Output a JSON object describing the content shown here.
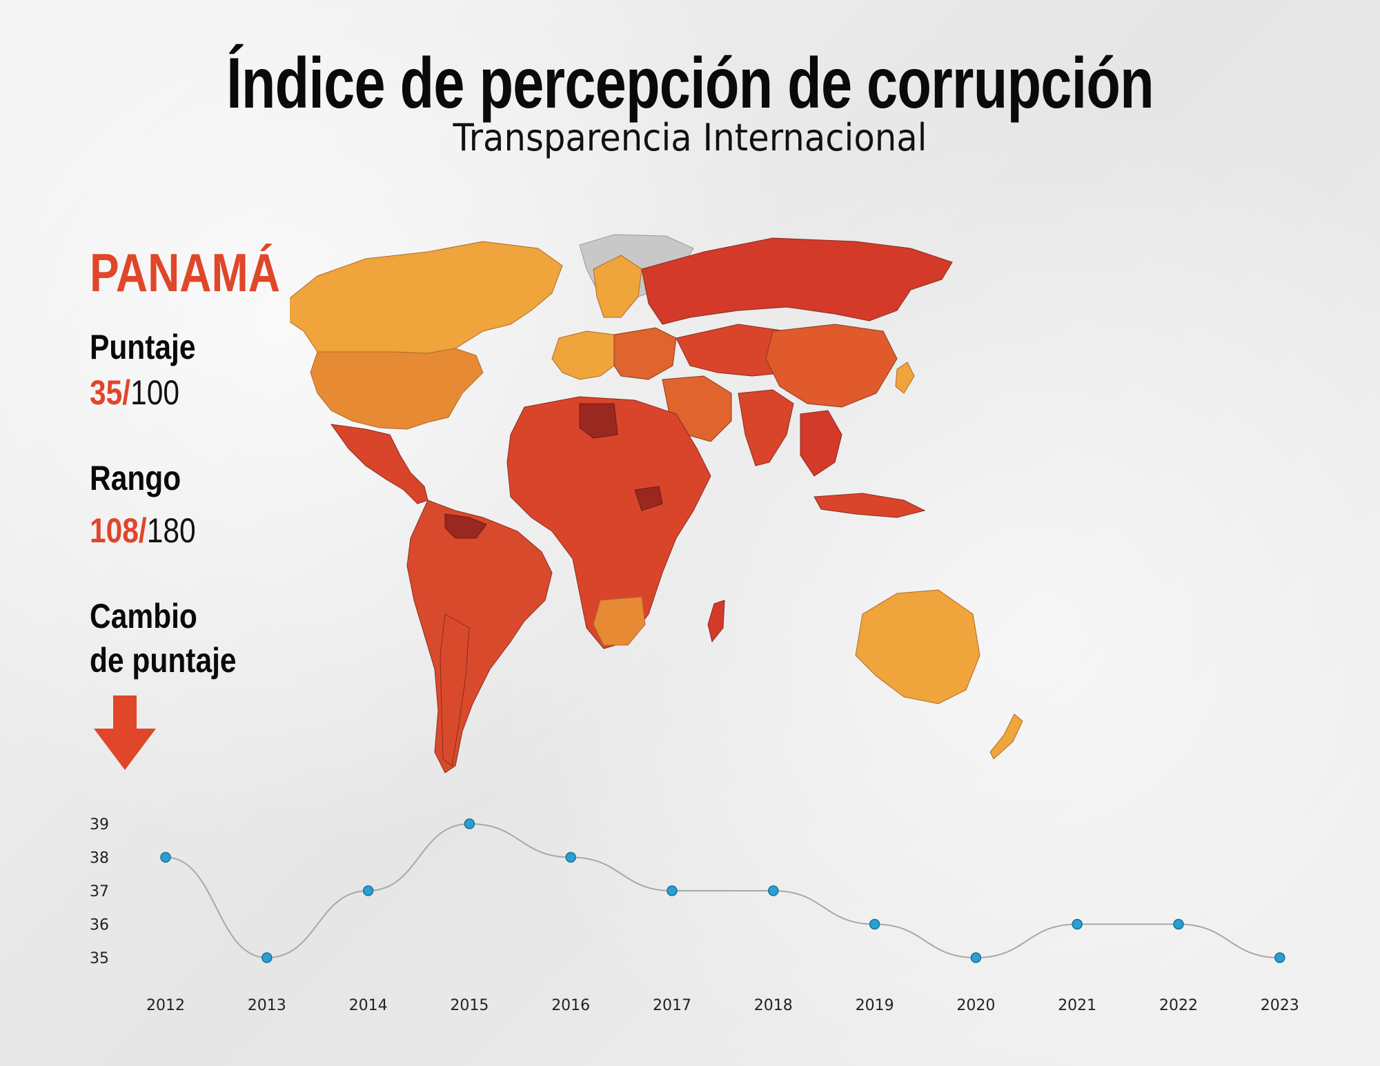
{
  "header": {
    "title": "Índice de percepción de corrupción",
    "subtitle": "Transparencia Internacional"
  },
  "panel": {
    "country": "PANAMÁ",
    "score_label": "Puntaje",
    "score_value": "35/",
    "score_total": "100",
    "rank_label": "Rango",
    "rank_value": "108/",
    "rank_total": "180",
    "change_label_line1": "Cambio",
    "change_label_line2": "de puntaje",
    "change_icon": "arrow-down-icon"
  },
  "colors": {
    "accent": "#e0462a",
    "line": "#a8a8a8",
    "marker": "#2a9fd4",
    "marker_stroke": "#1a6f9a"
  },
  "chart_data": {
    "type": "line",
    "x": [
      "2012",
      "2013",
      "2014",
      "2015",
      "2016",
      "2017",
      "2018",
      "2019",
      "2020",
      "2021",
      "2022",
      "2023"
    ],
    "values": [
      38,
      35,
      37,
      39,
      38,
      37,
      37,
      36,
      35,
      36,
      36,
      35
    ],
    "yticks": [
      39,
      38,
      37,
      36,
      35
    ],
    "ylim": [
      35,
      39
    ]
  }
}
